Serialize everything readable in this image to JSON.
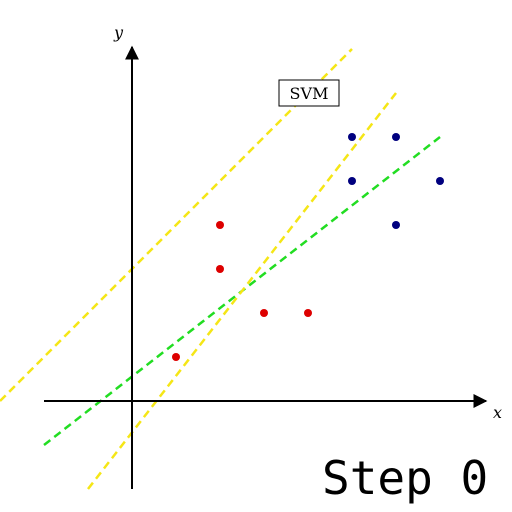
{
  "axes": {
    "x_label": "x",
    "y_label": "y"
  },
  "annotation": {
    "label": "SVM"
  },
  "step": {
    "label": "Step 0"
  },
  "colors": {
    "axis": "#000000",
    "class_red": "#dd0000",
    "class_blue": "#00007f",
    "decision_boundary": "#22dd22",
    "margin": "#f5e616"
  },
  "chart_data": {
    "type": "scatter",
    "xlim": [
      -2,
      8
    ],
    "ylim": [
      -2,
      8
    ],
    "grid": false,
    "series": [
      {
        "color": "red",
        "points": [
          [
            1,
            1
          ],
          [
            2,
            3
          ],
          [
            2,
            4
          ],
          [
            3,
            2
          ],
          [
            4,
            2
          ]
        ]
      },
      {
        "color": "blue",
        "points": [
          [
            5,
            6
          ],
          [
            5,
            5
          ],
          [
            6,
            6
          ],
          [
            6,
            4
          ],
          [
            7,
            5
          ]
        ]
      }
    ],
    "lines": [
      {
        "role": "decision_boundary",
        "style": "dashed",
        "color": "green",
        "from": [
          -2,
          -1
        ],
        "to": [
          7,
          6
        ]
      },
      {
        "role": "margin",
        "style": "dashed",
        "color": "yellow",
        "from": [
          -3,
          0
        ],
        "to": [
          5,
          8
        ]
      },
      {
        "role": "margin",
        "style": "dashed",
        "color": "yellow",
        "from": [
          -1,
          -2
        ],
        "to": [
          6,
          7
        ]
      }
    ]
  }
}
